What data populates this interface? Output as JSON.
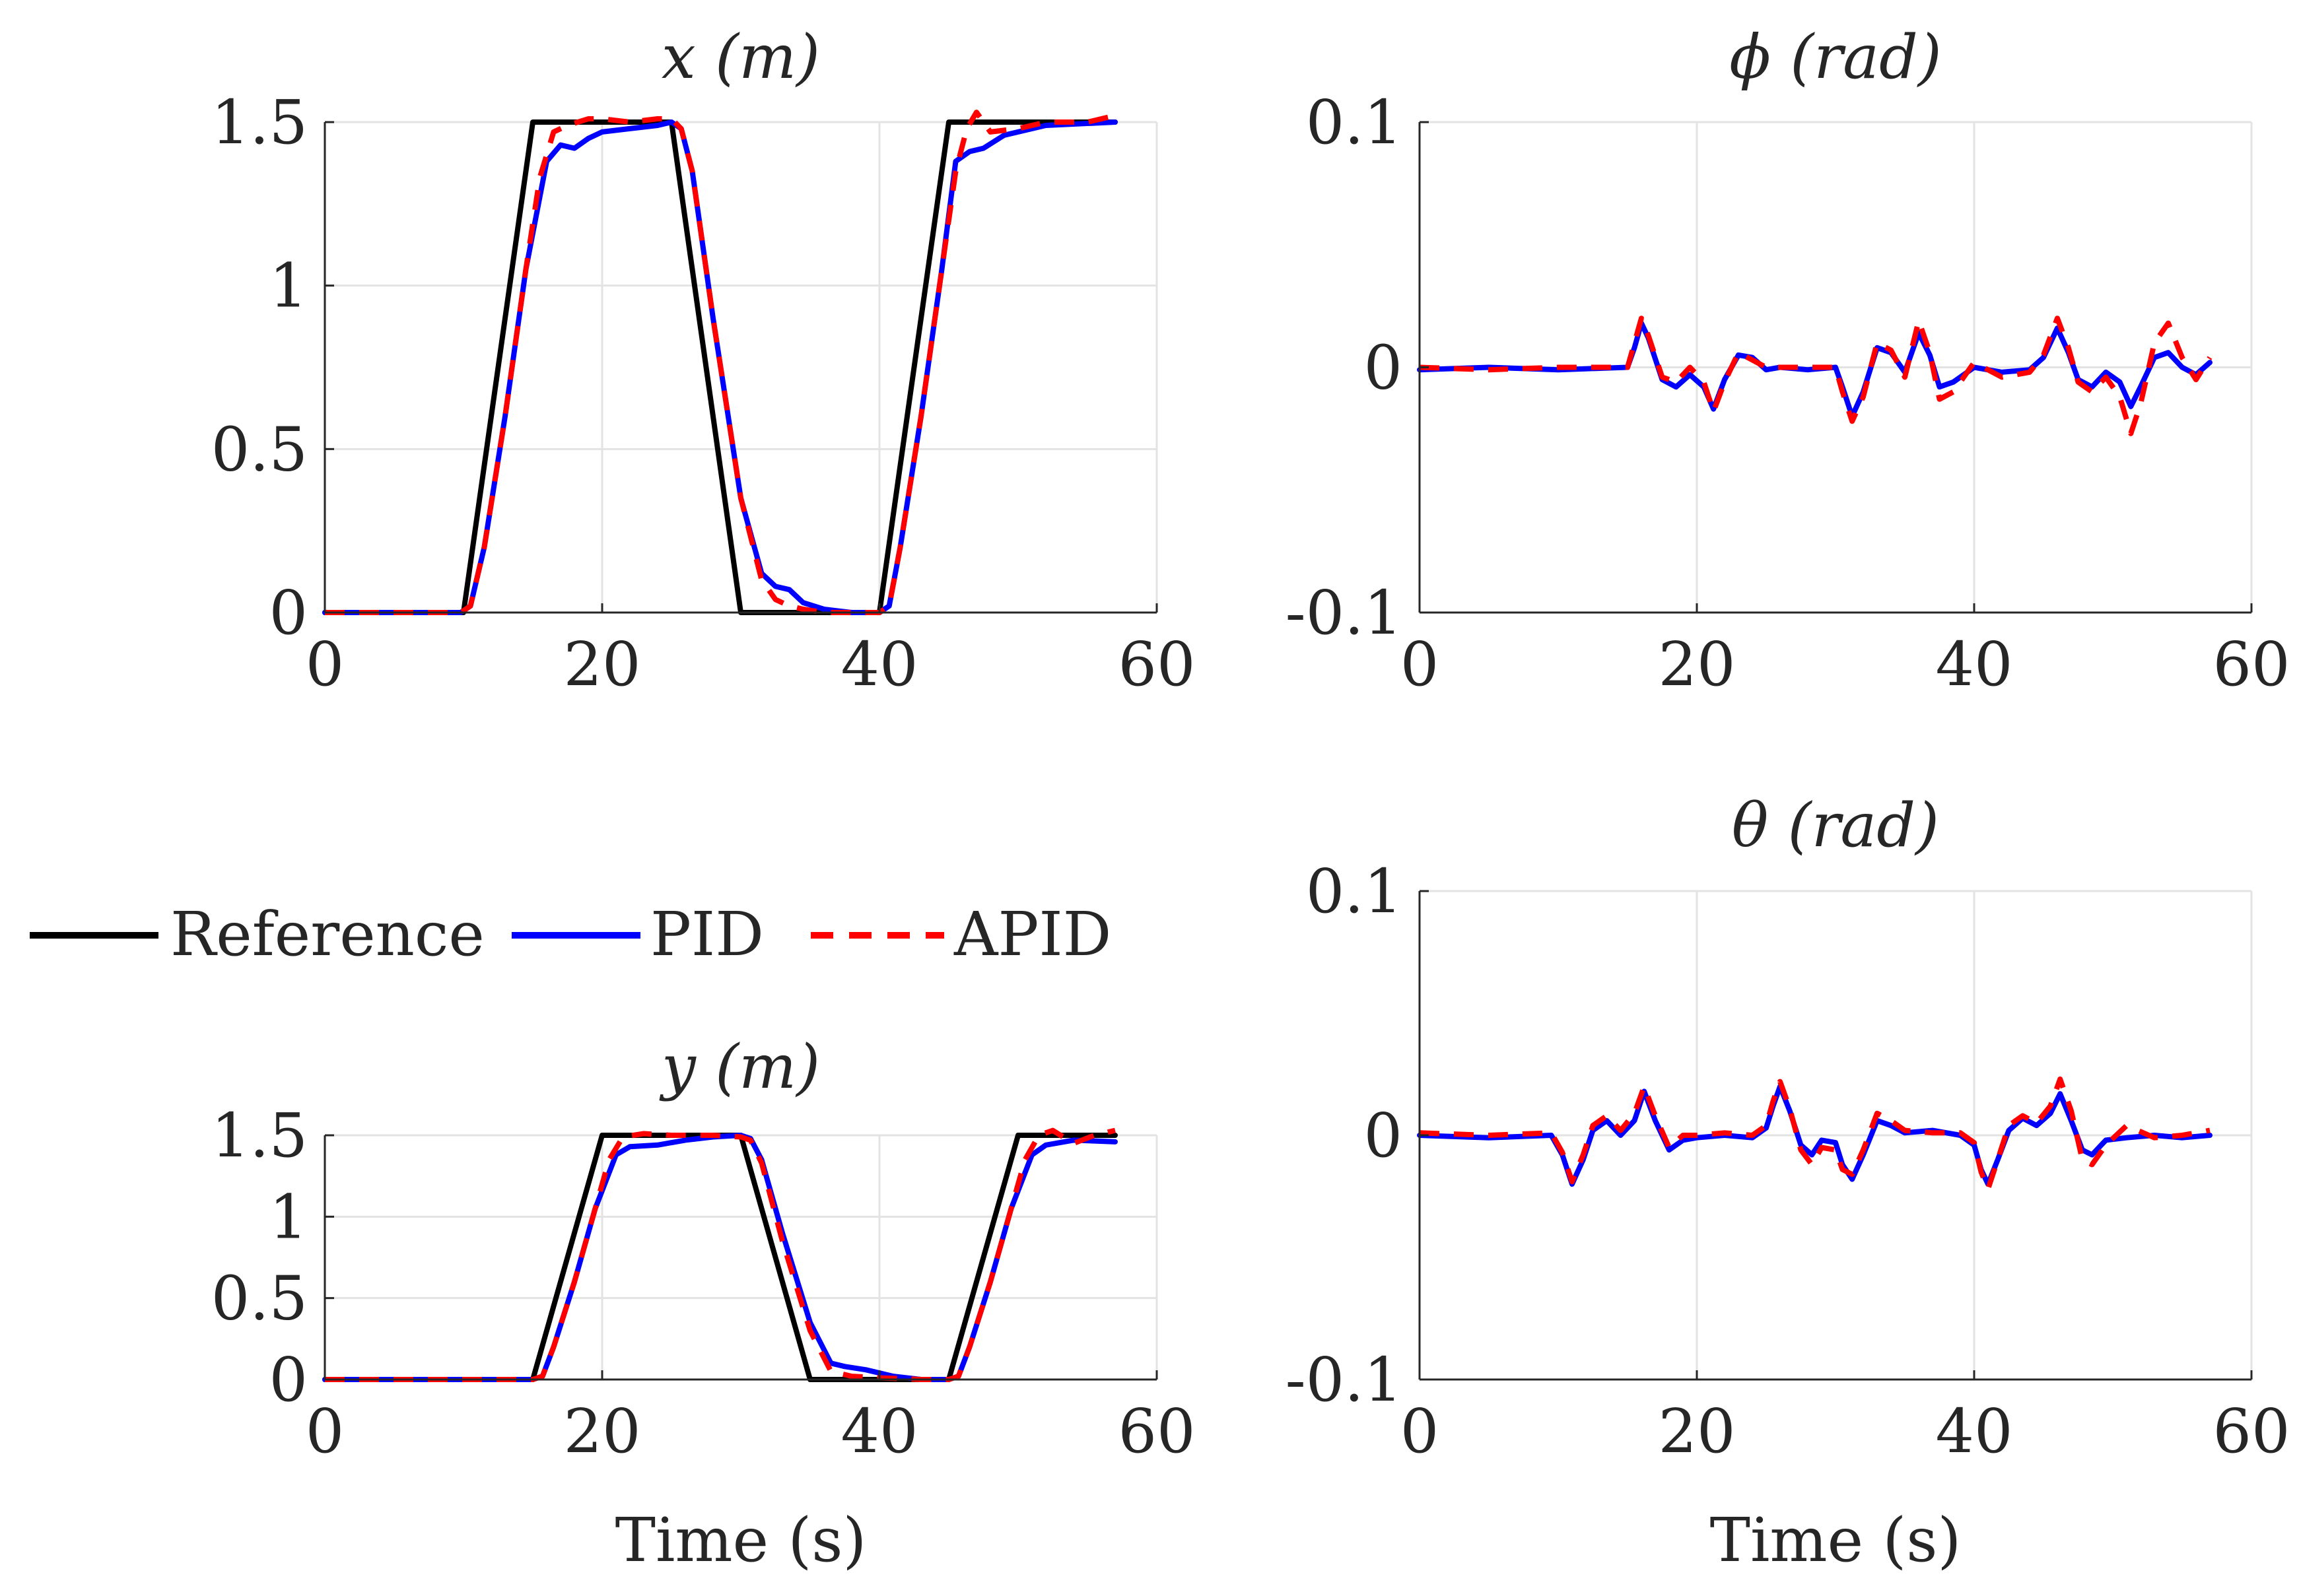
{
  "legend": {
    "placement": "middle-left",
    "items": [
      {
        "label": "Reference",
        "color": "#000000",
        "dash": "solid"
      },
      {
        "label": "PID",
        "color": "#0000ff",
        "dash": "solid"
      },
      {
        "label": "APID",
        "color": "#ff0000",
        "dash": "dashed"
      }
    ]
  },
  "chart_data": [
    {
      "id": "x",
      "type": "line",
      "title": "x (m)",
      "xlabel": "",
      "ylabel": "",
      "xlim": [
        0,
        60
      ],
      "ylim": [
        0,
        1.5
      ],
      "xticks": [
        0,
        20,
        40,
        60
      ],
      "xtick_labels": [
        "0",
        "20",
        "40",
        "60"
      ],
      "yticks": [
        0,
        0.5,
        1,
        1.5
      ],
      "ytick_labels": [
        "0",
        "0.5",
        "1",
        "1.5"
      ],
      "grid": true,
      "series": [
        {
          "name": "Reference",
          "x": [
            0,
            10,
            15,
            25,
            30,
            40,
            45,
            57
          ],
          "y": [
            0,
            0,
            1.5,
            1.5,
            0,
            0,
            1.5,
            1.5
          ]
        },
        {
          "name": "PID",
          "x": [
            0,
            9.8,
            10.5,
            11.5,
            13,
            14.5,
            16,
            17,
            18,
            19,
            20,
            22,
            24,
            25,
            25.7,
            26.5,
            28,
            30,
            31.5,
            32.5,
            33.5,
            34.5,
            36,
            38,
            40,
            40.7,
            41.5,
            43,
            44.5,
            45.5,
            46.5,
            47.5,
            49,
            52,
            57
          ],
          "y": [
            0,
            0,
            0.02,
            0.2,
            0.6,
            1.05,
            1.38,
            1.43,
            1.42,
            1.45,
            1.47,
            1.48,
            1.49,
            1.5,
            1.48,
            1.35,
            0.9,
            0.35,
            0.12,
            0.08,
            0.07,
            0.03,
            0.01,
            0,
            0,
            0.02,
            0.2,
            0.6,
            1.05,
            1.38,
            1.41,
            1.42,
            1.46,
            1.49,
            1.5
          ]
        },
        {
          "name": "APID",
          "x": [
            0,
            9.8,
            10.5,
            11.5,
            13,
            14.5,
            15.5,
            16.5,
            17.5,
            19,
            20,
            22,
            24,
            25,
            25.7,
            26.5,
            28,
            30,
            31.5,
            32.5,
            33.5,
            34.5,
            36,
            38,
            40,
            40.7,
            41.5,
            43,
            44.5,
            45.5,
            46.3,
            47,
            48,
            50,
            52,
            55,
            57
          ],
          "y": [
            0,
            0,
            0.02,
            0.2,
            0.6,
            1.05,
            1.33,
            1.47,
            1.49,
            1.51,
            1.51,
            1.5,
            1.51,
            1.51,
            1.48,
            1.35,
            0.9,
            0.35,
            0.1,
            0.04,
            0.02,
            0.01,
            0,
            0,
            0,
            0.02,
            0.2,
            0.6,
            1.05,
            1.35,
            1.48,
            1.53,
            1.47,
            1.48,
            1.5,
            1.5,
            1.52
          ]
        }
      ]
    },
    {
      "id": "phi",
      "type": "line",
      "title": "ϕ (rad)",
      "xlabel": "",
      "ylabel": "",
      "xlim": [
        0,
        60
      ],
      "ylim": [
        -0.1,
        0.1
      ],
      "xticks": [
        0,
        20,
        40,
        60
      ],
      "xtick_labels": [
        "0",
        "20",
        "40",
        "60"
      ],
      "yticks": [
        -0.1,
        0,
        0.1
      ],
      "ytick_labels": [
        "-0.1",
        "0",
        "0.1"
      ],
      "grid": true,
      "series": [
        {
          "name": "PID",
          "x": [
            0,
            5,
            10,
            15,
            15.5,
            16,
            16.5,
            17.5,
            18.5,
            19.5,
            20.5,
            21.2,
            22,
            23,
            24,
            25,
            26,
            28,
            30,
            30.5,
            31.2,
            32,
            33,
            34,
            35,
            36,
            36.8,
            37.5,
            38.5,
            40,
            42,
            44,
            45,
            46,
            46.8,
            47.5,
            48.5,
            49.5,
            50.5,
            51.3,
            52,
            53,
            54,
            55,
            56,
            57
          ],
          "y": [
            -0.001,
            0,
            -0.001,
            0,
            0.008,
            0.018,
            0.012,
            -0.005,
            -0.008,
            -0.003,
            -0.008,
            -0.017,
            -0.005,
            0.005,
            0.004,
            -0.001,
            0,
            -0.001,
            0,
            -0.008,
            -0.02,
            -0.01,
            0.008,
            0.006,
            -0.002,
            0.014,
            0.005,
            -0.008,
            -0.006,
            0,
            -0.002,
            -0.001,
            0.004,
            0.016,
            0.006,
            -0.005,
            -0.008,
            -0.002,
            -0.006,
            -0.016,
            -0.008,
            0.004,
            0.006,
            0,
            -0.003,
            0.002
          ]
        },
        {
          "name": "APID",
          "x": [
            0,
            5,
            10,
            15,
            15.5,
            16,
            16.5,
            17.5,
            18.5,
            19.5,
            20.5,
            21.2,
            22,
            23,
            24,
            25,
            26,
            28,
            30,
            30.5,
            31.2,
            32,
            33,
            34,
            35,
            36,
            36.8,
            37.5,
            38.5,
            40,
            42,
            44,
            45,
            46,
            46.8,
            47.5,
            48.5,
            49.5,
            50.5,
            51.3,
            52,
            53,
            54,
            55,
            56,
            57
          ],
          "y": [
            0,
            -0.001,
            0,
            0,
            0.01,
            0.02,
            0.013,
            -0.004,
            -0.006,
            0,
            -0.006,
            -0.018,
            -0.006,
            0.006,
            0.003,
            0,
            0,
            0,
            0,
            -0.01,
            -0.022,
            -0.012,
            0.01,
            0.007,
            -0.004,
            0.019,
            0.006,
            -0.013,
            -0.01,
            0.002,
            -0.004,
            -0.002,
            0.005,
            0.02,
            0.008,
            -0.006,
            -0.01,
            -0.004,
            -0.012,
            -0.027,
            -0.015,
            0.01,
            0.018,
            0.004,
            -0.005,
            0.004
          ]
        }
      ]
    },
    {
      "id": "y",
      "type": "line",
      "title": "y (m)",
      "xlabel": "Time (s)",
      "ylabel": "",
      "xlim": [
        0,
        60
      ],
      "ylim": [
        0,
        1.5
      ],
      "xticks": [
        0,
        20,
        40,
        60
      ],
      "xtick_labels": [
        "0",
        "20",
        "40",
        "60"
      ],
      "yticks": [
        0,
        0.5,
        1,
        1.5
      ],
      "ytick_labels": [
        "0",
        "0.5",
        "1",
        "1.5"
      ],
      "grid": true,
      "series": [
        {
          "name": "Reference",
          "x": [
            0,
            15,
            20,
            30,
            35,
            45,
            50,
            57
          ],
          "y": [
            0,
            0,
            1.5,
            1.5,
            0,
            0,
            1.5,
            1.5
          ]
        },
        {
          "name": "PID",
          "x": [
            0,
            15,
            15.7,
            16.5,
            18,
            19.5,
            21,
            22,
            24,
            26,
            28,
            30,
            30.7,
            31.5,
            33,
            35,
            36.5,
            37.5,
            39,
            41,
            43,
            45,
            45.7,
            46.5,
            48,
            49.5,
            51,
            52,
            54,
            57
          ],
          "y": [
            0,
            0,
            0.02,
            0.2,
            0.6,
            1.05,
            1.38,
            1.43,
            1.44,
            1.47,
            1.49,
            1.5,
            1.48,
            1.35,
            0.9,
            0.35,
            0.1,
            0.08,
            0.06,
            0.02,
            0,
            0,
            0.02,
            0.2,
            0.6,
            1.05,
            1.38,
            1.44,
            1.47,
            1.46
          ]
        },
        {
          "name": "APID",
          "x": [
            0,
            15,
            15.7,
            16.5,
            18,
            19.5,
            20.5,
            21.5,
            23,
            25,
            28,
            30,
            30.7,
            31.5,
            33,
            35,
            36.5,
            38,
            40,
            43,
            45,
            45.7,
            46.5,
            48,
            49.5,
            50.5,
            51.5,
            52.5,
            54,
            55.5,
            57
          ],
          "y": [
            0,
            0,
            0.02,
            0.2,
            0.6,
            1.05,
            1.35,
            1.49,
            1.51,
            1.5,
            1.5,
            1.49,
            1.47,
            1.33,
            0.85,
            0.3,
            0.05,
            0.02,
            0.01,
            0,
            0,
            0.02,
            0.2,
            0.6,
            1.05,
            1.35,
            1.5,
            1.53,
            1.45,
            1.5,
            1.53
          ]
        }
      ]
    },
    {
      "id": "theta",
      "type": "line",
      "title": "θ (rad)",
      "xlabel": "Time (s)",
      "ylabel": "",
      "xlim": [
        0,
        60
      ],
      "ylim": [
        -0.1,
        0.1
      ],
      "xticks": [
        0,
        20,
        40,
        60
      ],
      "xtick_labels": [
        "0",
        "20",
        "40",
        "60"
      ],
      "yticks": [
        -0.1,
        0,
        0.1
      ],
      "ytick_labels": [
        "-0.1",
        "0",
        "0.1"
      ],
      "grid": true,
      "series": [
        {
          "name": "PID",
          "x": [
            0,
            5,
            9.5,
            10.3,
            11,
            11.8,
            12.5,
            13.5,
            14.5,
            15.5,
            16.2,
            17,
            18,
            19,
            20,
            22,
            24,
            25,
            25.5,
            26,
            26.7,
            27.5,
            28.3,
            29,
            30,
            30.5,
            31.2,
            32,
            33,
            34,
            35,
            37,
            39,
            40,
            40.5,
            41,
            41.7,
            42.5,
            43.5,
            44.5,
            45.5,
            46.2,
            47,
            47.8,
            48.5,
            49.5,
            51,
            53,
            55,
            57
          ],
          "y": [
            0,
            -0.001,
            0,
            -0.008,
            -0.02,
            -0.01,
            0.002,
            0.006,
            0,
            0.006,
            0.018,
            0.006,
            -0.006,
            -0.002,
            -0.001,
            0,
            -0.001,
            0.003,
            0.012,
            0.02,
            0.01,
            -0.004,
            -0.008,
            -0.002,
            -0.003,
            -0.012,
            -0.018,
            -0.008,
            0.006,
            0.004,
            0.001,
            0.002,
            0,
            -0.004,
            -0.014,
            -0.02,
            -0.01,
            0.002,
            0.007,
            0.004,
            0.009,
            0.017,
            0.006,
            -0.006,
            -0.008,
            -0.002,
            -0.001,
            0,
            -0.001,
            0
          ]
        },
        {
          "name": "APID",
          "x": [
            0,
            5,
            9.5,
            10.3,
            11,
            11.8,
            12.5,
            13.5,
            14.5,
            15.5,
            16.2,
            17,
            18,
            19,
            20,
            22,
            24,
            25,
            25.5,
            26,
            26.7,
            27.5,
            28.3,
            29,
            30,
            30.5,
            31.2,
            32,
            33,
            34,
            35,
            37,
            39,
            40,
            40.5,
            41,
            41.7,
            42.5,
            43.5,
            44.5,
            45.5,
            46.2,
            47,
            47.8,
            48.5,
            49.5,
            51,
            53,
            55,
            57
          ],
          "y": [
            0.001,
            0,
            0.001,
            -0.007,
            -0.019,
            -0.008,
            0.004,
            0.008,
            0.002,
            0.009,
            0.02,
            0.008,
            -0.005,
            0,
            0,
            0.001,
            0,
            0.004,
            0.014,
            0.022,
            0.011,
            -0.006,
            -0.012,
            -0.005,
            -0.006,
            -0.014,
            -0.016,
            -0.006,
            0.009,
            0.006,
            0.002,
            0.001,
            0.001,
            -0.003,
            -0.015,
            -0.022,
            -0.01,
            0.004,
            0.008,
            0.005,
            0.012,
            0.023,
            0.01,
            -0.01,
            -0.012,
            -0.004,
            0.004,
            -0.001,
            0,
            0.002
          ]
        }
      ]
    }
  ]
}
